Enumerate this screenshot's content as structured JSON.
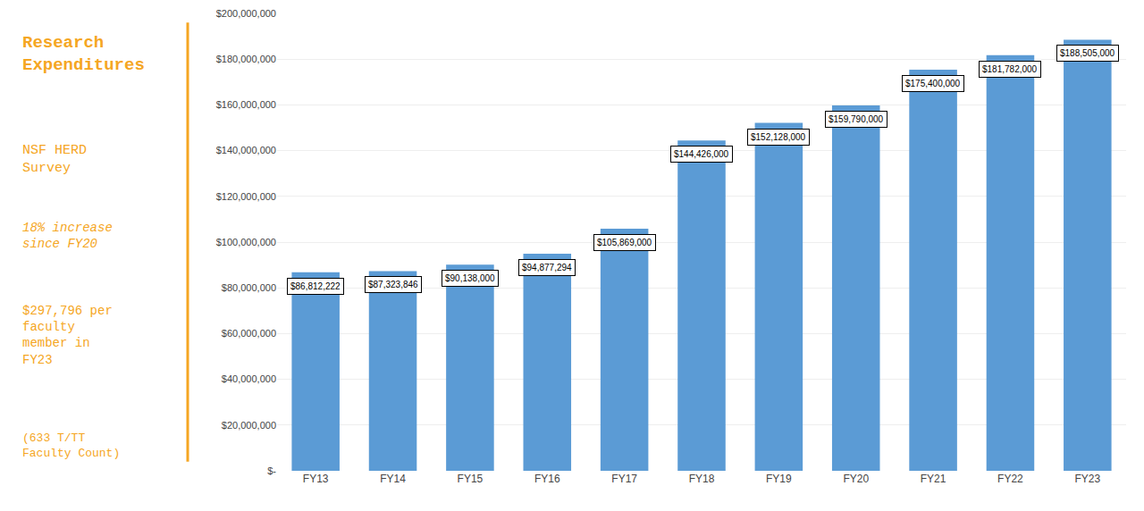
{
  "chart_data": {
    "type": "bar",
    "categories": [
      "FY13",
      "FY14",
      "FY15",
      "FY16",
      "FY17",
      "FY18",
      "FY19",
      "FY20",
      "FY21",
      "FY22",
      "FY23"
    ],
    "values": [
      86812222,
      87323846,
      90138000,
      94877294,
      105869000,
      144426000,
      152128000,
      159790000,
      175400000,
      181782000,
      188505000
    ],
    "value_labels": [
      "$86,812,222",
      "$87,323,846",
      "$90,138,000",
      "$94,877,294",
      "$105,869,000",
      "$144,426,000",
      "$152,128,000",
      "$159,790,000",
      "$175,400,000",
      "$181,782,000",
      "$188,505,000"
    ],
    "data_labels": true,
    "color": "#5B9BD5",
    "ylim": [
      0,
      200000000
    ],
    "yticks": [
      {
        "value": 0,
        "label": "$-"
      },
      {
        "value": 20000000,
        "label": "$20,000,000"
      },
      {
        "value": 40000000,
        "label": "$40,000,000"
      },
      {
        "value": 60000000,
        "label": "$60,000,000"
      },
      {
        "value": 80000000,
        "label": "$80,000,000"
      },
      {
        "value": 100000000,
        "label": "$100,000,000"
      },
      {
        "value": 120000000,
        "label": "$120,000,000"
      },
      {
        "value": 140000000,
        "label": "$140,000,000"
      },
      {
        "value": 160000000,
        "label": "$160,000,000"
      },
      {
        "value": 180000000,
        "label": "$180,000,000"
      },
      {
        "value": 200000000,
        "label": "$200,000,000"
      }
    ],
    "grid": true,
    "annotations": [
      {
        "text": "Research\nExpenditures",
        "color": "#F5A623"
      },
      {
        "text": "NSF HERD\nSurvey",
        "color": "#F5A623"
      },
      {
        "text": "18% increase\nsince FY20",
        "color": "#F5A623"
      },
      {
        "text": "$297,796 per\nfaculty\nmember in\nFY23",
        "color": "#F5A623"
      },
      {
        "text": "(633 T/TT\nFaculty Count)",
        "color": "#F5A623"
      }
    ]
  }
}
